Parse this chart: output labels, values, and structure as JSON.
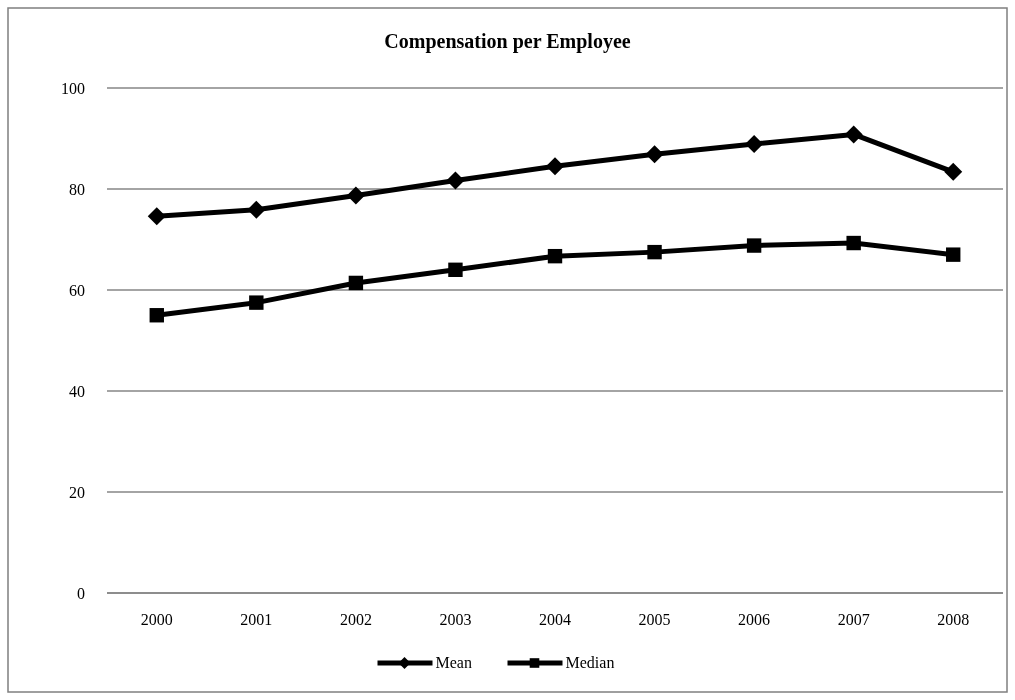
{
  "chart_data": {
    "type": "line",
    "title": "Compensation per Employee",
    "categories": [
      "2000",
      "2001",
      "2002",
      "2003",
      "2004",
      "2005",
      "2006",
      "2007",
      "2008"
    ],
    "series": [
      {
        "name": "Mean",
        "color": "#000000",
        "marker": "diamond",
        "values": [
          74.6,
          75.9,
          78.7,
          81.7,
          84.5,
          86.9,
          88.9,
          90.8,
          83.4
        ]
      },
      {
        "name": "Median",
        "color": "#000000",
        "marker": "square",
        "values": [
          55.0,
          57.5,
          61.4,
          64.0,
          66.7,
          67.5,
          68.8,
          69.3,
          67.0
        ]
      }
    ],
    "ylim": [
      0,
      100
    ],
    "yticks": [
      0,
      20,
      40,
      60,
      80,
      100
    ],
    "grid": "y",
    "legend": "bottom",
    "line_style": "solid"
  }
}
